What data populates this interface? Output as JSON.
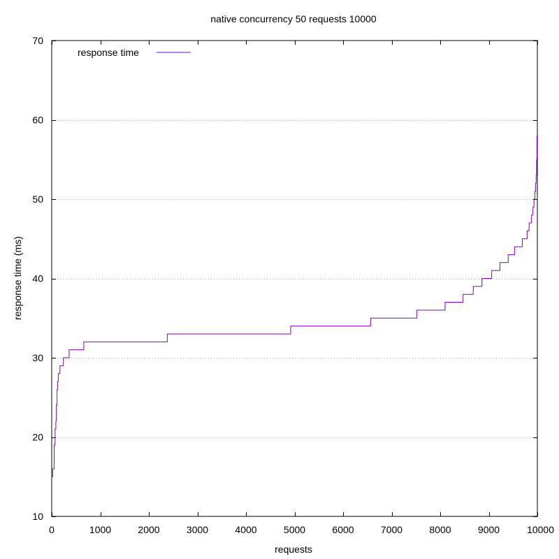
{
  "chart_data": {
    "type": "line",
    "title": "native concurrency 50 requests 10000",
    "xlabel": "requests",
    "ylabel": "response time (ms)",
    "xlim": [
      0,
      10000
    ],
    "ylim": [
      10,
      70
    ],
    "x_ticks": [
      0,
      1000,
      2000,
      3000,
      4000,
      5000,
      6000,
      7000,
      8000,
      9000,
      10000
    ],
    "y_ticks": [
      10,
      20,
      30,
      40,
      50,
      60,
      70
    ],
    "x_tick_labels": [
      "0",
      "1000",
      "2000",
      "3000",
      "4000",
      "5000",
      "6000",
      "7000",
      "8000",
      "9000",
      "10000"
    ],
    "y_tick_labels": [
      "10",
      "20",
      "30",
      "40",
      "50",
      "60",
      "70"
    ],
    "grid": "horizontal-dotted",
    "legend_position": "top-left",
    "series": [
      {
        "name": "response time",
        "color": "#8000c0",
        "step": true,
        "points": [
          [
            0,
            15
          ],
          [
            20,
            15
          ],
          [
            20,
            16
          ],
          [
            50,
            16
          ],
          [
            50,
            19
          ],
          [
            70,
            19
          ],
          [
            70,
            21
          ],
          [
            85,
            21
          ],
          [
            85,
            22
          ],
          [
            95,
            22
          ],
          [
            95,
            24
          ],
          [
            110,
            24
          ],
          [
            110,
            26
          ],
          [
            120,
            26
          ],
          [
            120,
            27
          ],
          [
            135,
            27
          ],
          [
            135,
            28
          ],
          [
            170,
            28
          ],
          [
            170,
            29
          ],
          [
            240,
            29
          ],
          [
            240,
            30
          ],
          [
            360,
            30
          ],
          [
            360,
            31
          ],
          [
            660,
            31
          ],
          [
            660,
            32
          ],
          [
            2380,
            32
          ],
          [
            2380,
            33
          ],
          [
            4920,
            33
          ],
          [
            4920,
            34
          ],
          [
            6570,
            34
          ],
          [
            6570,
            35
          ],
          [
            7520,
            35
          ],
          [
            7520,
            36
          ],
          [
            8100,
            36
          ],
          [
            8100,
            37
          ],
          [
            8470,
            37
          ],
          [
            8470,
            38
          ],
          [
            8680,
            38
          ],
          [
            8680,
            39
          ],
          [
            8860,
            39
          ],
          [
            8860,
            40
          ],
          [
            9060,
            40
          ],
          [
            9060,
            41
          ],
          [
            9230,
            41
          ],
          [
            9230,
            42
          ],
          [
            9400,
            42
          ],
          [
            9400,
            43
          ],
          [
            9530,
            43
          ],
          [
            9530,
            44
          ],
          [
            9690,
            44
          ],
          [
            9690,
            45
          ],
          [
            9790,
            45
          ],
          [
            9790,
            46
          ],
          [
            9830,
            46
          ],
          [
            9830,
            47
          ],
          [
            9880,
            47
          ],
          [
            9880,
            48
          ],
          [
            9910,
            48
          ],
          [
            9910,
            49
          ],
          [
            9930,
            49
          ],
          [
            9930,
            50
          ],
          [
            9950,
            50
          ],
          [
            9950,
            51
          ],
          [
            9965,
            51
          ],
          [
            9965,
            52
          ],
          [
            9975,
            52
          ],
          [
            9975,
            53
          ],
          [
            9985,
            53
          ],
          [
            9985,
            55
          ],
          [
            9992,
            55
          ],
          [
            9992,
            58
          ],
          [
            10000,
            58
          ]
        ]
      }
    ]
  }
}
